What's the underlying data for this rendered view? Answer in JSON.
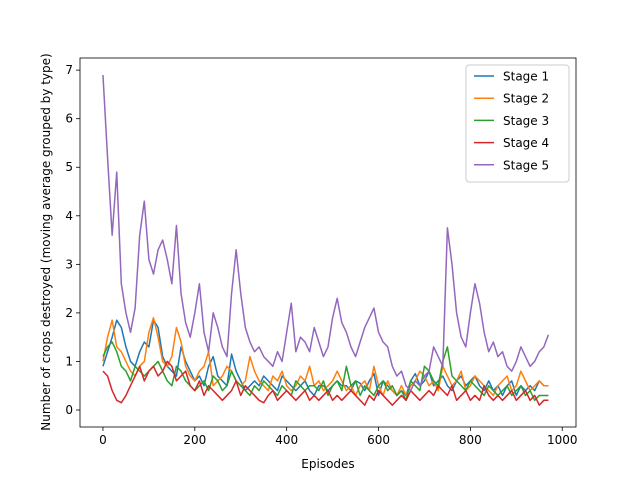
{
  "chart_data": {
    "type": "line",
    "title": "",
    "xlabel": "Episodes",
    "ylabel": "Number of crops destroyed (moving average grouped by type)",
    "xlim": [
      -50,
      1030
    ],
    "ylim": [
      -0.35,
      7.25
    ],
    "x_ticks": [
      0,
      200,
      400,
      600,
      800,
      1000
    ],
    "y_ticks": [
      0,
      1,
      2,
      3,
      4,
      5,
      6,
      7
    ],
    "grid": false,
    "legend_position": "top-right",
    "x_start": 0,
    "x_step": 10,
    "series": [
      {
        "name": "Stage 1",
        "color": "#1f77b4",
        "values": [
          0.9,
          1.2,
          1.5,
          1.85,
          1.7,
          1.3,
          1.0,
          0.9,
          1.2,
          1.4,
          1.3,
          1.85,
          1.7,
          1.1,
          0.9,
          0.8,
          0.7,
          1.3,
          1.0,
          0.8,
          0.6,
          0.7,
          0.5,
          0.9,
          1.1,
          0.7,
          0.6,
          0.5,
          1.15,
          0.8,
          0.6,
          0.4,
          0.5,
          0.6,
          0.5,
          0.7,
          0.6,
          0.5,
          0.4,
          0.7,
          0.6,
          0.5,
          0.4,
          0.5,
          0.6,
          0.4,
          0.3,
          0.5,
          0.5,
          0.4,
          0.5,
          0.6,
          0.5,
          0.5,
          0.4,
          0.6,
          0.55,
          0.4,
          0.6,
          0.75,
          0.3,
          0.6,
          0.5,
          0.4,
          0.3,
          0.4,
          0.3,
          0.6,
          0.75,
          0.5,
          0.6,
          0.8,
          0.5,
          0.6,
          0.7,
          0.5,
          0.4,
          0.6,
          0.7,
          0.5,
          0.6,
          0.7,
          0.5,
          0.4,
          0.6,
          0.4,
          0.5,
          0.3,
          0.5,
          0.6,
          0.3,
          0.5,
          0.4,
          0.5,
          0.4,
          0.6,
          0.5,
          0.5
        ]
      },
      {
        "name": "Stage 2",
        "color": "#ff7f0e",
        "values": [
          1.0,
          1.5,
          1.85,
          1.3,
          1.2,
          1.0,
          0.8,
          0.7,
          0.9,
          1.0,
          1.6,
          1.9,
          1.5,
          1.0,
          0.9,
          1.1,
          1.7,
          1.4,
          0.9,
          0.7,
          0.6,
          0.8,
          0.9,
          1.2,
          0.5,
          0.6,
          0.7,
          0.9,
          0.8,
          0.6,
          0.5,
          0.6,
          1.1,
          0.8,
          0.6,
          0.5,
          0.4,
          0.7,
          0.6,
          0.8,
          0.5,
          0.4,
          0.5,
          0.7,
          0.6,
          0.9,
          0.5,
          0.6,
          0.4,
          0.5,
          0.6,
          0.8,
          0.6,
          0.4,
          0.5,
          0.3,
          0.5,
          0.6,
          0.4,
          0.9,
          0.5,
          0.3,
          0.6,
          0.4,
          0.3,
          0.5,
          0.3,
          0.5,
          0.6,
          0.8,
          0.7,
          0.5,
          0.6,
          0.4,
          0.9,
          0.7,
          0.5,
          0.6,
          0.8,
          0.4,
          0.5,
          0.7,
          0.6,
          0.5,
          0.4,
          0.3,
          0.5,
          0.6,
          0.7,
          0.4,
          0.5,
          0.8,
          0.6,
          0.4,
          0.5,
          0.6,
          0.5,
          0.5
        ]
      },
      {
        "name": "Stage 3",
        "color": "#2ca02c",
        "values": [
          1.1,
          1.3,
          1.4,
          1.2,
          0.9,
          0.8,
          0.6,
          0.9,
          0.8,
          0.7,
          0.8,
          0.9,
          1.0,
          0.8,
          0.6,
          0.5,
          0.9,
          0.8,
          0.6,
          0.5,
          0.4,
          0.5,
          0.6,
          0.4,
          0.7,
          0.6,
          0.4,
          0.5,
          0.8,
          0.6,
          0.5,
          0.4,
          0.3,
          0.5,
          0.4,
          0.6,
          0.5,
          0.4,
          0.3,
          0.5,
          0.4,
          0.3,
          0.6,
          0.5,
          0.4,
          0.5,
          0.5,
          0.4,
          0.6,
          0.3,
          0.5,
          0.6,
          0.4,
          0.9,
          0.5,
          0.6,
          0.3,
          0.5,
          0.4,
          0.3,
          0.5,
          0.6,
          0.4,
          0.5,
          0.3,
          0.4,
          0.2,
          0.6,
          0.5,
          0.4,
          0.9,
          0.8,
          0.6,
          0.5,
          1.0,
          1.3,
          0.7,
          0.6,
          0.5,
          0.4,
          0.6,
          0.5,
          0.4,
          0.3,
          0.5,
          0.4,
          0.3,
          0.4,
          0.5,
          0.3,
          0.4,
          0.5,
          0.3,
          0.4,
          0.2,
          0.3,
          0.3,
          0.3
        ]
      },
      {
        "name": "Stage 4",
        "color": "#d62728",
        "values": [
          0.8,
          0.7,
          0.4,
          0.2,
          0.15,
          0.3,
          0.5,
          0.7,
          0.9,
          0.6,
          0.8,
          0.9,
          0.7,
          0.8,
          1.0,
          0.9,
          0.6,
          0.7,
          0.8,
          0.5,
          0.4,
          0.6,
          0.3,
          0.5,
          0.4,
          0.3,
          0.2,
          0.3,
          0.4,
          0.6,
          0.3,
          0.5,
          0.4,
          0.3,
          0.2,
          0.15,
          0.3,
          0.4,
          0.2,
          0.3,
          0.4,
          0.3,
          0.2,
          0.3,
          0.4,
          0.2,
          0.3,
          0.2,
          0.3,
          0.4,
          0.2,
          0.3,
          0.2,
          0.3,
          0.4,
          0.3,
          0.2,
          0.1,
          0.3,
          0.2,
          0.4,
          0.3,
          0.2,
          0.1,
          0.2,
          0.3,
          0.2,
          0.4,
          0.3,
          0.2,
          0.3,
          0.4,
          0.3,
          0.5,
          0.4,
          0.3,
          0.5,
          0.2,
          0.3,
          0.4,
          0.2,
          0.3,
          0.2,
          0.5,
          0.3,
          0.2,
          0.3,
          0.2,
          0.3,
          0.4,
          0.2,
          0.3,
          0.4,
          0.2,
          0.3,
          0.1,
          0.2,
          0.2
        ]
      },
      {
        "name": "Stage 5",
        "color": "#9467bd",
        "values": [
          6.9,
          5.2,
          3.6,
          4.9,
          2.6,
          2.0,
          1.6,
          2.1,
          3.6,
          4.3,
          3.1,
          2.8,
          3.3,
          3.5,
          3.1,
          2.6,
          3.8,
          2.4,
          1.8,
          1.5,
          2.0,
          2.6,
          1.6,
          1.2,
          2.0,
          1.7,
          1.3,
          1.1,
          2.4,
          3.3,
          2.4,
          1.7,
          1.4,
          1.2,
          1.3,
          1.1,
          1.0,
          0.9,
          1.2,
          1.0,
          1.6,
          2.2,
          1.2,
          1.5,
          1.4,
          1.2,
          1.7,
          1.4,
          1.1,
          1.3,
          1.9,
          2.3,
          1.8,
          1.6,
          1.3,
          1.1,
          1.4,
          1.7,
          1.9,
          2.1,
          1.6,
          1.4,
          1.3,
          0.9,
          0.7,
          0.8,
          0.5,
          0.4,
          0.6,
          0.5,
          0.7,
          0.8,
          1.3,
          1.1,
          0.9,
          3.75,
          3.0,
          2.0,
          1.5,
          1.3,
          2.0,
          2.6,
          2.2,
          1.6,
          1.2,
          1.4,
          1.1,
          1.2,
          0.9,
          0.8,
          1.0,
          1.3,
          1.1,
          0.9,
          1.0,
          1.2,
          1.3,
          1.55
        ]
      }
    ]
  }
}
